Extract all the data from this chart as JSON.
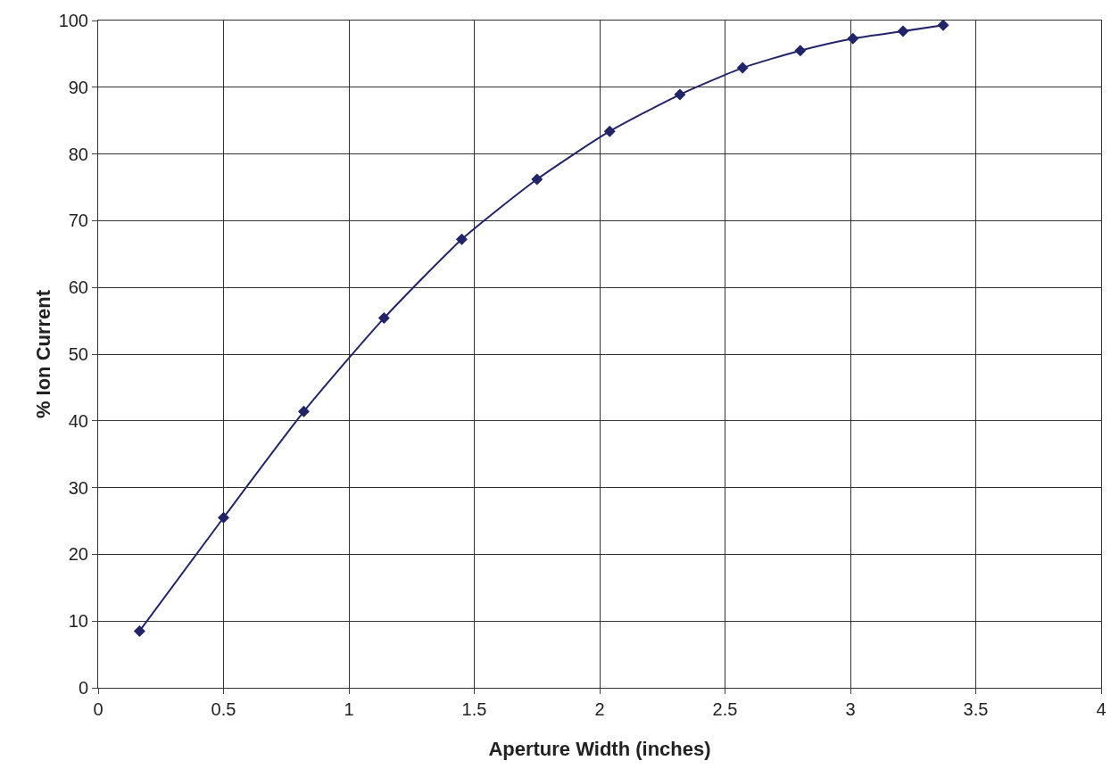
{
  "chart_data": {
    "type": "line",
    "xlabel": "Aperture Width (inches)",
    "ylabel": "% Ion Current",
    "x": [
      0.165,
      0.5,
      0.82,
      1.14,
      1.45,
      1.75,
      2.04,
      2.32,
      2.57,
      2.8,
      3.01,
      3.21,
      3.37
    ],
    "series": [
      {
        "color": "#22246a",
        "values": [
          8.5,
          25.5,
          41.4,
          55.4,
          67.2,
          76.2,
          83.4,
          88.9,
          92.9,
          95.5,
          97.3,
          98.4,
          99.3
        ]
      }
    ],
    "xlim": [
      0,
      4
    ],
    "xticks": [
      0,
      0.5,
      1,
      1.5,
      2,
      2.5,
      3,
      3.5,
      4
    ],
    "ylim": [
      0,
      100
    ],
    "yticks": [
      0,
      10,
      20,
      30,
      40,
      50,
      60,
      70,
      80,
      90,
      100
    ],
    "grid": true,
    "marker": "diamond",
    "line_style": "solid"
  }
}
